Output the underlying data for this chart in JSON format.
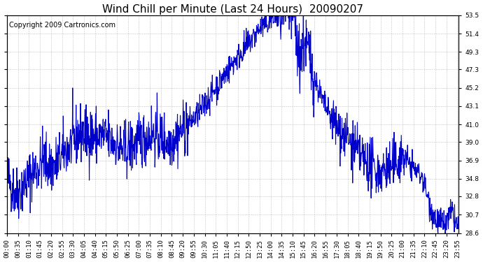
{
  "title": "Wind Chill per Minute (Last 24 Hours)  20090207",
  "copyright": "Copyright 2009 Cartronics.com",
  "line_color": "#0000cc",
  "background_color": "#ffffff",
  "plot_bg_color": "#ffffff",
  "grid_color": "#aaaaaa",
  "ylim": [
    28.6,
    53.5
  ],
  "yticks": [
    28.6,
    30.7,
    32.8,
    34.8,
    36.9,
    39.0,
    41.0,
    43.1,
    45.2,
    47.3,
    49.3,
    51.4,
    53.5
  ],
  "xtick_labels": [
    "00:00",
    "00:35",
    "01:10",
    "01:45",
    "02:20",
    "02:55",
    "03:30",
    "04:05",
    "04:40",
    "05:15",
    "05:50",
    "06:25",
    "07:00",
    "07:35",
    "08:10",
    "08:45",
    "09:20",
    "09:55",
    "10:30",
    "11:05",
    "11:40",
    "12:15",
    "12:50",
    "13:25",
    "14:00",
    "14:35",
    "15:10",
    "15:45",
    "16:20",
    "16:55",
    "17:30",
    "18:05",
    "18:40",
    "19:15",
    "19:50",
    "20:25",
    "21:00",
    "21:35",
    "22:10",
    "22:45",
    "23:20",
    "23:55"
  ],
  "title_fontsize": 11,
  "copyright_fontsize": 7,
  "tick_fontsize": 6.5,
  "line_width": 0.8,
  "figsize": [
    6.9,
    3.75
  ],
  "dpi": 100
}
